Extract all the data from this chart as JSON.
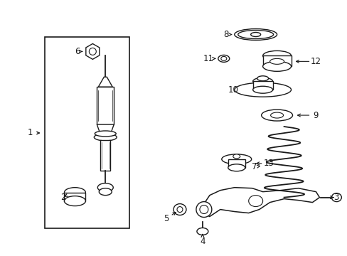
{
  "bg_color": "#ffffff",
  "line_color": "#1a1a1a",
  "label_color": "#1a1a1a",
  "fig_width": 4.89,
  "fig_height": 3.6,
  "dpi": 100,
  "arrow_color": "#1a1a1a",
  "font_size": 8.5
}
